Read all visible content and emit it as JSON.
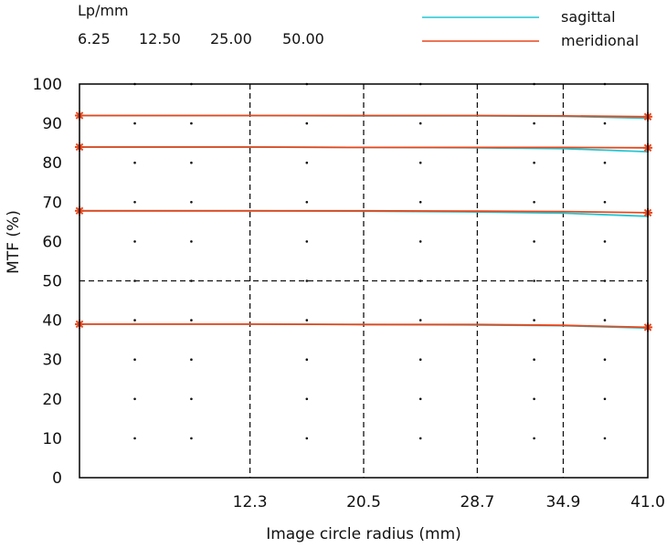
{
  "chart_data": {
    "type": "line",
    "header": {
      "unit_label": "Lp/mm",
      "frequencies": [
        "6.25",
        "12.50",
        "25.00",
        "50.00"
      ]
    },
    "legend": {
      "placement": "top-right",
      "entries": [
        {
          "name": "sagittal",
          "color": "#22c7d4"
        },
        {
          "name": "meridional",
          "color": "#e8471c"
        }
      ]
    },
    "xlabel": "Image circle radius (mm)",
    "ylabel": "MTF (%)",
    "xlim": [
      0,
      41.0
    ],
    "ylim": [
      0,
      100
    ],
    "xticks": [
      "12.3",
      "20.5",
      "28.7",
      "34.9",
      "41.0"
    ],
    "yticks": [
      "0",
      "10",
      "20",
      "30",
      "40",
      "50",
      "60",
      "70",
      "80",
      "90",
      "100"
    ],
    "dashed_gridlines": {
      "x": [
        12.3,
        20.5,
        28.7,
        34.9
      ],
      "y": [
        50
      ]
    },
    "marker_color": "#e8471c",
    "series": [
      {
        "name": "sagittal",
        "color": "#22c7d4",
        "frequency": "6.25",
        "x": [
          0,
          12.3,
          20.5,
          28.7,
          34.9,
          41.0
        ],
        "y": [
          92.0,
          92.0,
          91.9,
          91.9,
          91.8,
          91.3
        ]
      },
      {
        "name": "meridional",
        "color": "#e8471c",
        "frequency": "6.25",
        "x": [
          0,
          12.3,
          20.5,
          28.7,
          34.9,
          41.0
        ],
        "y": [
          92.0,
          92.0,
          92.0,
          92.0,
          91.9,
          91.7
        ]
      },
      {
        "name": "sagittal",
        "color": "#22c7d4",
        "frequency": "12.50",
        "x": [
          0,
          12.3,
          20.5,
          28.7,
          34.9,
          41.0
        ],
        "y": [
          84.0,
          84.0,
          83.9,
          83.8,
          83.6,
          82.8
        ]
      },
      {
        "name": "meridional",
        "color": "#e8471c",
        "frequency": "12.50",
        "x": [
          0,
          12.3,
          20.5,
          28.7,
          34.9,
          41.0
        ],
        "y": [
          84.0,
          84.0,
          83.9,
          83.9,
          83.9,
          83.8
        ]
      },
      {
        "name": "sagittal",
        "color": "#22c7d4",
        "frequency": "25.00",
        "x": [
          0,
          12.3,
          20.5,
          28.7,
          34.9,
          41.0
        ],
        "y": [
          67.8,
          67.8,
          67.7,
          67.5,
          67.2,
          66.4
        ]
      },
      {
        "name": "meridional",
        "color": "#e8471c",
        "frequency": "25.00",
        "x": [
          0,
          12.3,
          20.5,
          28.7,
          34.9,
          41.0
        ],
        "y": [
          67.8,
          67.8,
          67.8,
          67.7,
          67.6,
          67.3
        ]
      },
      {
        "name": "sagittal",
        "color": "#22c7d4",
        "frequency": "50.00",
        "x": [
          0,
          12.3,
          20.5,
          28.7,
          34.9,
          41.0
        ],
        "y": [
          39.0,
          39.0,
          38.9,
          38.8,
          38.6,
          38.0
        ]
      },
      {
        "name": "meridional",
        "color": "#e8471c",
        "frequency": "50.00",
        "x": [
          0,
          12.3,
          20.5,
          28.7,
          34.9,
          41.0
        ],
        "y": [
          39.0,
          39.0,
          38.9,
          38.9,
          38.7,
          38.2
        ]
      }
    ]
  }
}
